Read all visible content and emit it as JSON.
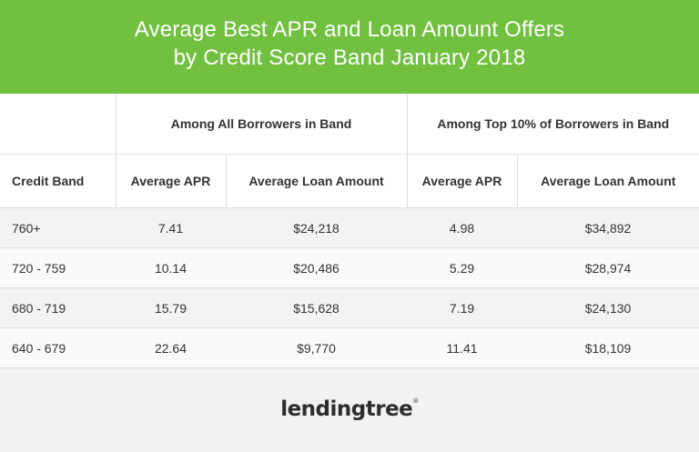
{
  "header": {
    "title_line1": "Average Best APR and Loan Amount Offers",
    "title_line2": "by Credit Score Band January 2018",
    "bg_color": "#71c03f"
  },
  "table": {
    "group_headers": [
      "Among All Borrowers in Band",
      "Among Top 10% of Borrowers in Band"
    ],
    "columns": [
      "Credit Band",
      "Average APR",
      "Average Loan Amount",
      "Average APR",
      "Average Loan Amount"
    ],
    "rows": [
      [
        "760+",
        "7.41",
        "$24,218",
        "4.98",
        "$34,892"
      ],
      [
        "720 - 759",
        "10.14",
        "$20,486",
        "5.29",
        "$28,974"
      ],
      [
        "680 - 719",
        "15.79",
        "$15,628",
        "7.19",
        "$24,130"
      ],
      [
        "640 - 679",
        "22.64",
        "$9,770",
        "11.41",
        "$18,109"
      ]
    ]
  },
  "footer": {
    "logo_text": "lendingtree",
    "logo_icon": "lendingtree-leaf-logo"
  }
}
